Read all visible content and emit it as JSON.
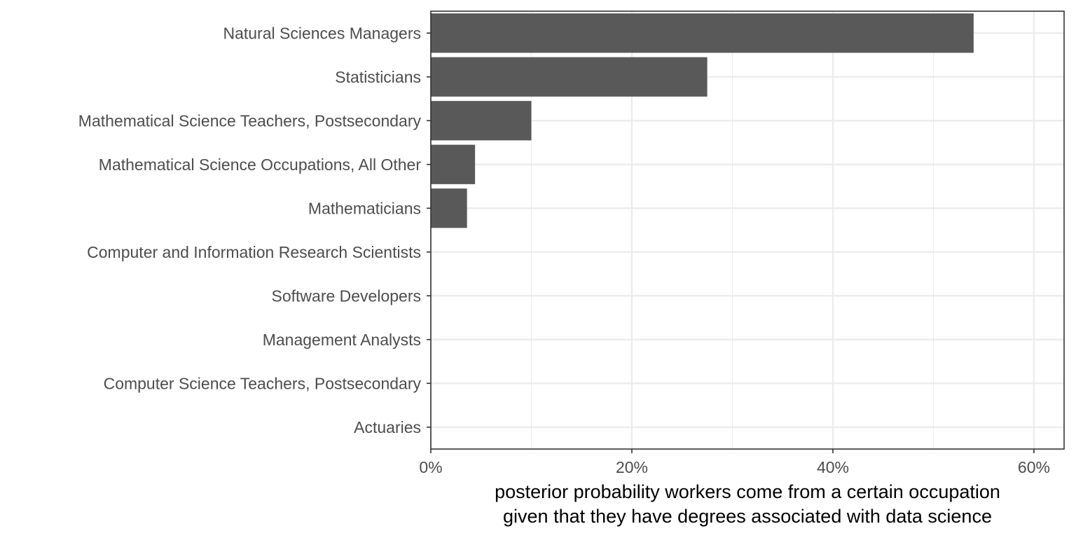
{
  "chart_data": {
    "type": "bar",
    "orientation": "horizontal",
    "categories": [
      "Natural Sciences Managers",
      "Statisticians",
      "Mathematical Science Teachers, Postsecondary",
      "Mathematical Science Occupations, All Other",
      "Mathematicians",
      "Computer and Information Research Scientists",
      "Software Developers",
      "Management Analysts",
      "Computer Science Teachers, Postsecondary",
      "Actuaries"
    ],
    "values": [
      0.54,
      0.275,
      0.1,
      0.044,
      0.036,
      0,
      0,
      0,
      0,
      0
    ],
    "xticks": [
      0,
      0.2,
      0.4,
      0.6
    ],
    "xtick_labels": [
      "0%",
      "20%",
      "40%",
      "60%"
    ],
    "xlim": [
      0,
      0.63
    ],
    "xlabel_lines": [
      "posterior probability workers come from a certain occupation",
      "given that they have degrees associated with data science"
    ],
    "ylabel": "",
    "title": "",
    "grid": true,
    "bar_color": "#595959",
    "grid_color": "#ebebeb",
    "panel_border_color": "#333333"
  }
}
